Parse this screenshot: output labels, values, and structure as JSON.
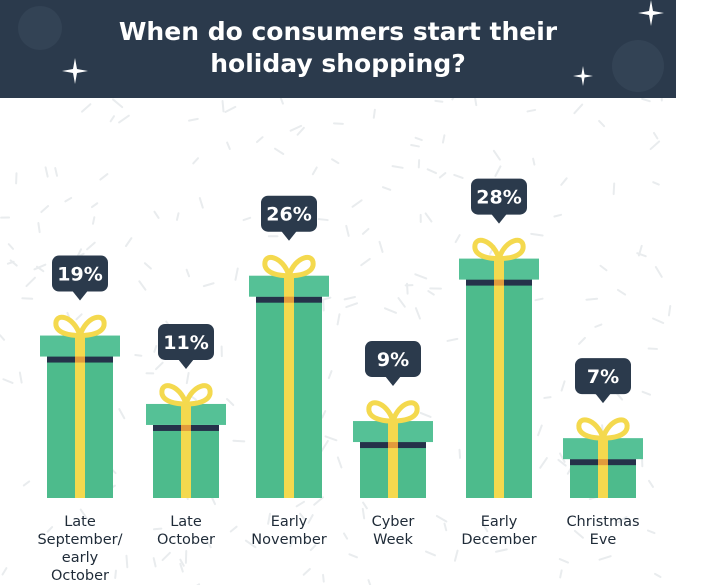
{
  "header": {
    "title_line1": "When do consumers start their",
    "title_line2": "holiday shopping?"
  },
  "colors": {
    "header_bg": "#2b3a4c",
    "box_green": "#4dbb8c",
    "lid_green": "#55c196",
    "ribbon_yellow": "#f4d94e",
    "band_navy": "#25324a",
    "label_bubble": "#2b3a4c",
    "text_dark": "#1f2b38"
  },
  "icons": [
    "sparkle-icon",
    "gift-bow-icon"
  ],
  "chart_data": {
    "type": "bar",
    "title": "When do consumers start their holiday shopping?",
    "categories": [
      [
        "Late",
        "September/",
        "early",
        "October"
      ],
      [
        "Late",
        "October"
      ],
      [
        "Early",
        "November"
      ],
      [
        "Cyber",
        "Week"
      ],
      [
        "Early",
        "December"
      ],
      [
        "Christmas",
        "Eve"
      ]
    ],
    "values": [
      19,
      11,
      26,
      9,
      28,
      7
    ],
    "value_labels": [
      "19%",
      "11%",
      "26%",
      "9%",
      "28%",
      "7%"
    ],
    "unit": "%",
    "xlabel": "",
    "ylabel": "",
    "grid": false,
    "legend": "none"
  }
}
